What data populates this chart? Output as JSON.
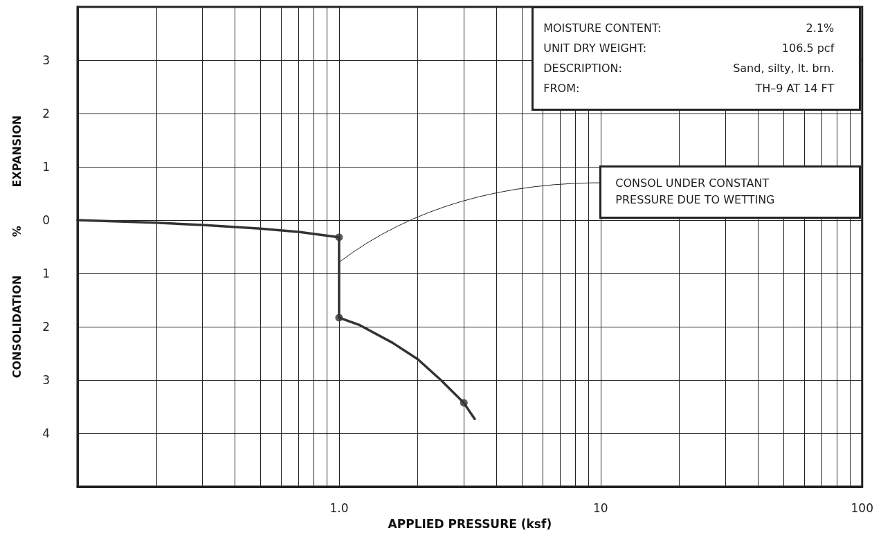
{
  "chart_data": {
    "type": "line",
    "xlabel": "APPLIED PRESSURE (ksf)",
    "ylabel": "CONSOLIDATION          %          EXPANSION",
    "log": "x",
    "grid": true,
    "xlim": [
      0.1,
      100
    ],
    "xticks": [
      {
        "value": 0.2,
        "label": null
      },
      {
        "value": 0.3,
        "label": null
      },
      {
        "value": 0.4,
        "label": null
      },
      {
        "value": 0.5,
        "label": null
      },
      {
        "value": 0.6,
        "label": null
      },
      {
        "value": 0.7,
        "label": null
      },
      {
        "value": 0.8,
        "label": null
      },
      {
        "value": 0.9,
        "label": null
      },
      {
        "value": 1,
        "label": "1.0"
      },
      {
        "value": 2,
        "label": null
      },
      {
        "value": 3,
        "label": null
      },
      {
        "value": 4,
        "label": null
      },
      {
        "value": 5,
        "label": null
      },
      {
        "value": 6,
        "label": null
      },
      {
        "value": 7,
        "label": null
      },
      {
        "value": 8,
        "label": null
      },
      {
        "value": 9,
        "label": null
      },
      10,
      {
        "value": 20,
        "label": null
      },
      {
        "value": 30,
        "label": null
      },
      {
        "value": 40,
        "label": null
      },
      {
        "value": 50,
        "label": null
      },
      {
        "value": 60,
        "label": null
      },
      {
        "value": 70,
        "label": null
      },
      {
        "value": 80,
        "label": null
      },
      {
        "value": 90,
        "label": null
      },
      100
    ],
    "ylim": [
      -5,
      4
    ],
    "yticks": [
      {
        "value": -4,
        "label": "4"
      },
      {
        "value": -3,
        "label": "3"
      },
      {
        "value": -2,
        "label": "2"
      },
      {
        "value": -1,
        "label": "1"
      },
      0,
      1,
      2,
      3
    ],
    "series": [
      {
        "marker": "none",
        "color": "#333333",
        "x": [
          0.1,
          0.2,
          0.3,
          0.5,
          0.7,
          1.0,
          1.0,
          1.2,
          1.6,
          2.0,
          2.45,
          3.0,
          3.3
        ],
        "values": [
          0,
          -0.05,
          -0.09,
          -0.16,
          -0.22,
          -0.32,
          -1.83,
          -1.97,
          -2.3,
          -2.61,
          -3.0,
          -3.43,
          -3.73
        ]
      },
      {
        "type": "scatter",
        "marker": "circle",
        "color": "#333333",
        "x": [
          1.0,
          1.0,
          3.0
        ],
        "values": [
          -0.32,
          -1.83,
          -3.43
        ]
      }
    ],
    "annotations": [
      "MOISTURE CONTENT:",
      "2.1%",
      "UNIT DRY WEIGHT:",
      "106.5 pcf",
      "DESCRIPTION:",
      "Sand, silty, lt. brn.",
      "FROM:",
      "TH–9 AT 14 FT",
      {
        "text": "CONSOL UNDER CONSTANT\nPRESSURE DUE TO WETTING",
        "x": 1.0,
        "y": -0.79
      }
    ]
  }
}
